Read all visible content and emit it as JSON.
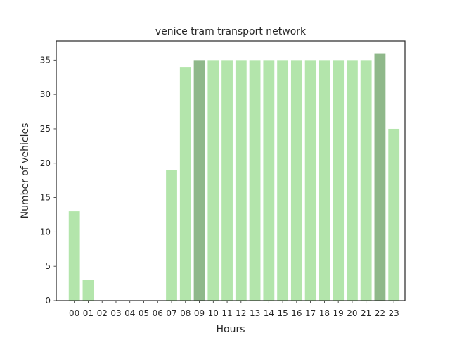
{
  "chart_data": {
    "type": "bar",
    "title": "venice tram transport network",
    "xlabel": "Hours",
    "ylabel": "Number of vehicles",
    "categories": [
      "00",
      "01",
      "02",
      "03",
      "04",
      "05",
      "06",
      "07",
      "08",
      "09",
      "10",
      "11",
      "12",
      "13",
      "14",
      "15",
      "16",
      "17",
      "18",
      "19",
      "20",
      "21",
      "22",
      "23"
    ],
    "values": [
      13,
      3,
      0,
      0,
      0,
      0,
      0,
      19,
      34,
      35,
      35,
      35,
      35,
      35,
      35,
      35,
      35,
      35,
      35,
      35,
      35,
      35,
      36,
      25
    ],
    "highlighted_categories": [
      "09",
      "22"
    ],
    "ylim": [
      0,
      37.8
    ],
    "yticks": [
      0,
      5,
      10,
      15,
      20,
      25,
      30,
      35
    ],
    "grid": false,
    "colors": {
      "bar": "#b3e5ab",
      "bar_highlight": "#8fb88a",
      "axes": "#262626",
      "text": "#262626"
    }
  }
}
